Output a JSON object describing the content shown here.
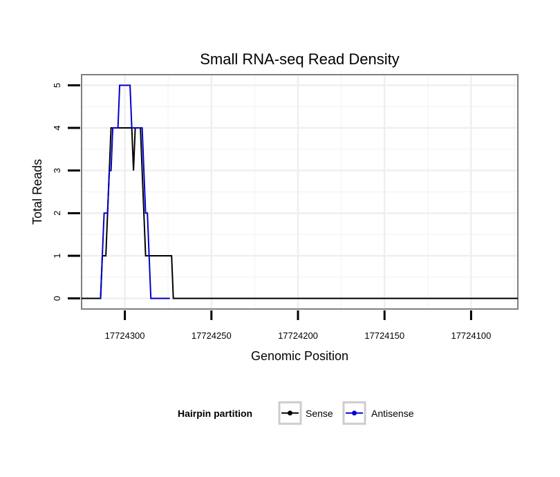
{
  "chart_data": {
    "type": "line",
    "title": "Small RNA-seq Read Density",
    "xlabel": "Genomic Position",
    "ylabel": "Total Reads",
    "xlim": [
      17724325,
      17724073
    ],
    "ylim": [
      -0.25,
      5.25
    ],
    "x_reversed": true,
    "grid": true,
    "xticks": [
      17724300,
      17724250,
      17724200,
      17724150,
      17724100
    ],
    "xtick_labels": [
      "17724300",
      "17724250",
      "17724200",
      "17724150",
      "17724100"
    ],
    "yticks": [
      0,
      1,
      2,
      3,
      4,
      5
    ],
    "ytick_labels": [
      "0",
      "1",
      "2",
      "3",
      "4",
      "5"
    ],
    "legend": {
      "title": "Hairpin partition",
      "position": "bottom"
    },
    "series": [
      {
        "name": "Sense",
        "color": "#000000",
        "x": [
          17724325,
          17724314,
          17724313,
          17724311,
          17724310,
          17724308,
          17724297,
          17724296,
          17724295,
          17724294,
          17724293,
          17724292,
          17724291,
          17724289,
          17724288,
          17724287,
          17724286,
          17724273,
          17724272,
          17724271,
          17724270,
          17724073
        ],
        "y": [
          0,
          0,
          1,
          1,
          2,
          4,
          4,
          4,
          3,
          4,
          4,
          4,
          4,
          2,
          1,
          1,
          1,
          1,
          0,
          0,
          0,
          0
        ]
      },
      {
        "name": "Antisense",
        "color": "#0000cc",
        "x": [
          17724314,
          17724313,
          17724312,
          17724311,
          17724310,
          17724309,
          17724308,
          17724307,
          17724305,
          17724304,
          17724303,
          17724298,
          17724297,
          17724296,
          17724295,
          17724292,
          17724291,
          17724290,
          17724289,
          17724288,
          17724287,
          17724286,
          17724285,
          17724284,
          17724276,
          17724275,
          17724274
        ],
        "y": [
          0,
          1,
          2,
          2,
          2,
          3,
          3,
          4,
          4,
          4,
          5,
          5,
          5,
          4,
          4,
          4,
          4,
          4,
          3,
          2,
          2,
          1,
          0,
          0,
          0,
          0,
          0
        ]
      }
    ]
  }
}
